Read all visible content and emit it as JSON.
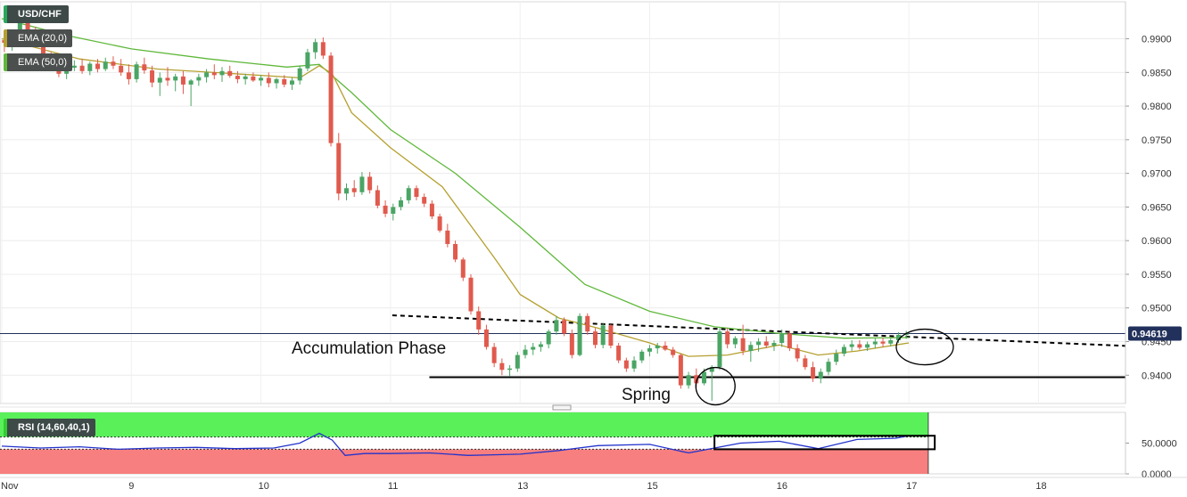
{
  "header": {
    "symbol": "USD/CHF",
    "ema_fast_label": "EMA (20,0)",
    "ema_slow_label": "EMA (50,0)",
    "rsi_label": "RSI (14,60,40,1)"
  },
  "colors": {
    "up_candle": "#4aa564",
    "down_candle": "#e05a4d",
    "ema_fast": "#b5a030",
    "ema_slow": "#5fb83a",
    "rsi_line": "#2233cc",
    "rsi_upper_zone": "#5af05a",
    "rsi_lower_zone": "#f77f7f",
    "price_line": "#22315c",
    "current_price_bg": "#22315c"
  },
  "annotations": {
    "accumulation": "Accumulation Phase",
    "spring": "Spring"
  },
  "chart_data": [
    {
      "type": "candlestick",
      "title": "USD/CHF",
      "y_ticks": [
        "0.9900",
        "0.9850",
        "0.9800",
        "0.9750",
        "0.9700",
        "0.9650",
        "0.9600",
        "0.9550",
        "0.9500",
        "0.9450",
        "0.9400"
      ],
      "ylim": [
        0.9358,
        0.9955
      ],
      "current_price": "0.94619",
      "x_tick_labels": [
        "Nov",
        "9",
        "10",
        "11",
        "13",
        "15",
        "16",
        "17",
        "18"
      ],
      "x_tick_values": [
        0,
        1,
        2,
        3,
        4,
        5,
        6,
        7,
        8
      ],
      "support_level": 0.9397,
      "resistance_trendline": [
        [
          3.0,
          0.9489
        ],
        [
          8.0,
          0.9449
        ]
      ],
      "ohlc": [
        [
          0.02,
          0.9898,
          0.9912,
          0.988,
          0.9894
        ],
        [
          0.08,
          0.9894,
          0.9908,
          0.9882,
          0.9902
        ],
        [
          0.14,
          0.9902,
          0.993,
          0.9895,
          0.9925
        ],
        [
          0.2,
          0.9925,
          0.9935,
          0.9905,
          0.991
        ],
        [
          0.26,
          0.991,
          0.9918,
          0.9888,
          0.9893
        ],
        [
          0.32,
          0.9893,
          0.99,
          0.9865,
          0.987
        ],
        [
          0.38,
          0.987,
          0.988,
          0.9855,
          0.9862
        ],
        [
          0.44,
          0.9862,
          0.9875,
          0.9843,
          0.9848
        ],
        [
          0.5,
          0.9848,
          0.9862,
          0.984,
          0.9857
        ],
        [
          0.56,
          0.9857,
          0.9868,
          0.9852,
          0.986
        ],
        [
          0.62,
          0.986,
          0.987,
          0.9848,
          0.9852
        ],
        [
          0.68,
          0.9852,
          0.9866,
          0.9846,
          0.9863
        ],
        [
          0.74,
          0.9863,
          0.987,
          0.985,
          0.9855
        ],
        [
          0.8,
          0.9855,
          0.9872,
          0.9852,
          0.9866
        ],
        [
          0.86,
          0.9866,
          0.9874,
          0.9855,
          0.986
        ],
        [
          0.92,
          0.986,
          0.987,
          0.9845,
          0.985
        ],
        [
          0.98,
          0.985,
          0.9862,
          0.9832,
          0.984
        ],
        [
          1.04,
          0.984,
          0.9866,
          0.9835,
          0.9862
        ],
        [
          1.1,
          0.9862,
          0.9872,
          0.9848,
          0.9853
        ],
        [
          1.16,
          0.9853,
          0.986,
          0.9828,
          0.9835
        ],
        [
          1.22,
          0.9835,
          0.985,
          0.9815,
          0.9842
        ],
        [
          1.28,
          0.9842,
          0.9858,
          0.983,
          0.9838
        ],
        [
          1.34,
          0.9838,
          0.9848,
          0.9822,
          0.9844
        ],
        [
          1.4,
          0.9844,
          0.9852,
          0.9818,
          0.9832
        ],
        [
          1.46,
          0.9832,
          0.984,
          0.98,
          0.9838
        ],
        [
          1.52,
          0.9838,
          0.9848,
          0.983,
          0.9843
        ],
        [
          1.58,
          0.9843,
          0.9855,
          0.9835,
          0.985
        ],
        [
          1.64,
          0.985,
          0.9862,
          0.984,
          0.9846
        ],
        [
          1.7,
          0.9846,
          0.9858,
          0.9836,
          0.9852
        ],
        [
          1.76,
          0.9852,
          0.986,
          0.9842,
          0.9845
        ],
        [
          1.82,
          0.9845,
          0.9852,
          0.9834,
          0.984
        ],
        [
          1.88,
          0.984,
          0.9848,
          0.9832,
          0.9844
        ],
        [
          1.94,
          0.9844,
          0.985,
          0.9836,
          0.9838
        ],
        [
          2.0,
          0.9838,
          0.9846,
          0.983,
          0.9842
        ],
        [
          2.06,
          0.9842,
          0.985,
          0.9828,
          0.9834
        ],
        [
          2.12,
          0.9834,
          0.9842,
          0.9826,
          0.984
        ],
        [
          2.18,
          0.984,
          0.9846,
          0.9828,
          0.9832
        ],
        [
          2.24,
          0.9832,
          0.9842,
          0.9824,
          0.9838
        ],
        [
          2.3,
          0.9838,
          0.986,
          0.9832,
          0.9856
        ],
        [
          2.36,
          0.9856,
          0.9885,
          0.9852,
          0.988
        ],
        [
          2.42,
          0.988,
          0.99,
          0.987,
          0.9895
        ],
        [
          2.48,
          0.9895,
          0.9902,
          0.987,
          0.9875
        ],
        [
          2.54,
          0.9875,
          0.988,
          0.974,
          0.9745
        ],
        [
          2.6,
          0.9745,
          0.976,
          0.966,
          0.967
        ],
        [
          2.66,
          0.967,
          0.9685,
          0.966,
          0.9678
        ],
        [
          2.72,
          0.9678,
          0.969,
          0.9665,
          0.9672
        ],
        [
          2.78,
          0.9672,
          0.9702,
          0.9668,
          0.9695
        ],
        [
          2.84,
          0.9695,
          0.9702,
          0.967,
          0.9675
        ],
        [
          2.9,
          0.9675,
          0.9682,
          0.9648,
          0.9652
        ],
        [
          2.96,
          0.9652,
          0.966,
          0.9635,
          0.964
        ],
        [
          3.02,
          0.964,
          0.9655,
          0.963,
          0.965
        ],
        [
          3.08,
          0.965,
          0.9665,
          0.9645,
          0.966
        ],
        [
          3.14,
          0.966,
          0.9682,
          0.9655,
          0.9678
        ],
        [
          3.2,
          0.9678,
          0.9682,
          0.966,
          0.9665
        ],
        [
          3.26,
          0.9665,
          0.967,
          0.965,
          0.9655
        ],
        [
          3.32,
          0.9655,
          0.966,
          0.9632,
          0.9636
        ],
        [
          3.38,
          0.9636,
          0.964,
          0.9612,
          0.9615
        ],
        [
          3.44,
          0.9615,
          0.9625,
          0.959,
          0.9595
        ],
        [
          3.5,
          0.9595,
          0.96,
          0.9568,
          0.9572
        ],
        [
          3.56,
          0.9572,
          0.9575,
          0.954,
          0.9545
        ],
        [
          3.62,
          0.9545,
          0.955,
          0.949,
          0.9495
        ],
        [
          3.68,
          0.9495,
          0.9502,
          0.946,
          0.9468
        ],
        [
          3.74,
          0.9468,
          0.9475,
          0.9438,
          0.9442
        ],
        [
          3.8,
          0.9442,
          0.9448,
          0.9412,
          0.9418
        ],
        [
          3.86,
          0.9418,
          0.9425,
          0.94,
          0.9408
        ],
        [
          3.92,
          0.9408,
          0.9415,
          0.9398,
          0.941
        ],
        [
          3.98,
          0.941,
          0.9435,
          0.9405,
          0.943
        ],
        [
          4.04,
          0.943,
          0.9445,
          0.9425,
          0.9438
        ],
        [
          4.1,
          0.9438,
          0.9448,
          0.943,
          0.9442
        ],
        [
          4.16,
          0.9442,
          0.945,
          0.9435,
          0.9446
        ],
        [
          4.22,
          0.9446,
          0.9468,
          0.944,
          0.9465
        ],
        [
          4.28,
          0.9465,
          0.9488,
          0.946,
          0.9482
        ],
        [
          4.34,
          0.9482,
          0.9486,
          0.9458,
          0.9462
        ],
        [
          4.4,
          0.9462,
          0.9468,
          0.9425,
          0.943
        ],
        [
          4.46,
          0.943,
          0.9492,
          0.9428,
          0.9488
        ],
        [
          4.52,
          0.9488,
          0.9492,
          0.946,
          0.9465
        ],
        [
          4.58,
          0.9465,
          0.947,
          0.944,
          0.9445
        ],
        [
          4.64,
          0.9445,
          0.9478,
          0.944,
          0.9474
        ],
        [
          4.7,
          0.9474,
          0.9476,
          0.944,
          0.9444
        ],
        [
          4.76,
          0.9444,
          0.9448,
          0.9418,
          0.9422
        ],
        [
          4.82,
          0.9422,
          0.9426,
          0.9405,
          0.941
        ],
        [
          4.88,
          0.941,
          0.9428,
          0.9405,
          0.9422
        ],
        [
          4.94,
          0.9422,
          0.9438,
          0.9418,
          0.9435
        ],
        [
          5.0,
          0.9435,
          0.9445,
          0.9428,
          0.944
        ],
        [
          5.06,
          0.944,
          0.9448,
          0.9432,
          0.9444
        ],
        [
          5.12,
          0.9444,
          0.945,
          0.9436,
          0.9438
        ],
        [
          5.18,
          0.9438,
          0.9442,
          0.9426,
          0.943
        ],
        [
          5.24,
          0.943,
          0.9432,
          0.938,
          0.9385
        ],
        [
          5.3,
          0.9385,
          0.9405,
          0.938,
          0.94
        ],
        [
          5.36,
          0.94,
          0.941,
          0.9382,
          0.9388
        ],
        [
          5.42,
          0.9388,
          0.941,
          0.9385,
          0.9405
        ],
        [
          5.48,
          0.9405,
          0.9415,
          0.9362,
          0.9412
        ],
        [
          5.54,
          0.9412,
          0.947,
          0.9408,
          0.9465
        ],
        [
          5.6,
          0.9465,
          0.947,
          0.944,
          0.9446
        ],
        [
          5.66,
          0.9446,
          0.9458,
          0.944,
          0.9455
        ],
        [
          5.72,
          0.9455,
          0.9475,
          0.943,
          0.9436
        ],
        [
          5.78,
          0.9436,
          0.945,
          0.942,
          0.9445
        ],
        [
          5.84,
          0.9445,
          0.9455,
          0.9435,
          0.945
        ],
        [
          5.9,
          0.945,
          0.9458,
          0.944,
          0.9444
        ],
        [
          5.96,
          0.9444,
          0.9452,
          0.9436,
          0.9448
        ],
        [
          6.02,
          0.9448,
          0.9468,
          0.9442,
          0.9462
        ],
        [
          6.08,
          0.9462,
          0.9466,
          0.9436,
          0.944
        ],
        [
          6.14,
          0.944,
          0.9446,
          0.942,
          0.9425
        ],
        [
          6.2,
          0.9425,
          0.943,
          0.9408,
          0.9412
        ],
        [
          6.26,
          0.9412,
          0.942,
          0.939,
          0.9395
        ],
        [
          6.32,
          0.9395,
          0.941,
          0.9388,
          0.9405
        ],
        [
          6.38,
          0.9405,
          0.9425,
          0.94,
          0.942
        ],
        [
          6.44,
          0.942,
          0.9438,
          0.9415,
          0.9432
        ],
        [
          6.5,
          0.9432,
          0.9446,
          0.9428,
          0.9442
        ],
        [
          6.56,
          0.9442,
          0.9452,
          0.9436,
          0.9446
        ],
        [
          6.62,
          0.9446,
          0.9452,
          0.9438,
          0.9441
        ],
        [
          6.68,
          0.9441,
          0.945,
          0.9436,
          0.9446
        ],
        [
          6.74,
          0.9446,
          0.9455,
          0.944,
          0.945
        ],
        [
          6.8,
          0.945,
          0.9456,
          0.9442,
          0.9447
        ],
        [
          6.86,
          0.9447,
          0.9455,
          0.9443,
          0.9452
        ],
        [
          6.92,
          0.9452,
          0.9464,
          0.9448,
          0.946
        ],
        [
          6.98,
          0.946,
          0.9466,
          0.9454,
          0.9462
        ]
      ],
      "ema20": [
        [
          0.0,
          0.99
        ],
        [
          0.6,
          0.987
        ],
        [
          1.2,
          0.9855
        ],
        [
          1.8,
          0.9848
        ],
        [
          2.3,
          0.9842
        ],
        [
          2.45,
          0.986
        ],
        [
          2.55,
          0.9848
        ],
        [
          2.7,
          0.979
        ],
        [
          3.0,
          0.9738
        ],
        [
          3.4,
          0.968
        ],
        [
          3.8,
          0.9575
        ],
        [
          4.0,
          0.952
        ],
        [
          4.3,
          0.9485
        ],
        [
          4.6,
          0.947
        ],
        [
          5.0,
          0.9448
        ],
        [
          5.3,
          0.9428
        ],
        [
          5.6,
          0.943
        ],
        [
          6.0,
          0.9445
        ],
        [
          6.3,
          0.943
        ],
        [
          6.6,
          0.9436
        ],
        [
          7.0,
          0.9448
        ]
      ],
      "ema50": [
        [
          0.0,
          0.993
        ],
        [
          0.5,
          0.9905
        ],
        [
          1.0,
          0.9885
        ],
        [
          1.6,
          0.987
        ],
        [
          2.2,
          0.9858
        ],
        [
          2.45,
          0.9862
        ],
        [
          2.7,
          0.982
        ],
        [
          3.0,
          0.9765
        ],
        [
          3.5,
          0.97
        ],
        [
          4.0,
          0.962
        ],
        [
          4.5,
          0.9535
        ],
        [
          5.0,
          0.9495
        ],
        [
          5.5,
          0.9472
        ],
        [
          6.0,
          0.9462
        ],
        [
          6.5,
          0.9455
        ],
        [
          7.0,
          0.9456
        ]
      ]
    },
    {
      "type": "line",
      "title": "RSI (14,60,40,1)",
      "y_ticks": [
        "50.0000",
        "0.0000"
      ],
      "levels": {
        "upper": 60,
        "lower": 40
      },
      "ylim": [
        0,
        100
      ],
      "values": [
        [
          0.0,
          45
        ],
        [
          0.3,
          42
        ],
        [
          0.6,
          44
        ],
        [
          0.9,
          40
        ],
        [
          1.2,
          42
        ],
        [
          1.5,
          43
        ],
        [
          1.8,
          41
        ],
        [
          2.1,
          42
        ],
        [
          2.3,
          50
        ],
        [
          2.45,
          66
        ],
        [
          2.55,
          55
        ],
        [
          2.65,
          30
        ],
        [
          2.8,
          33
        ],
        [
          3.0,
          33
        ],
        [
          3.3,
          34
        ],
        [
          3.6,
          30
        ],
        [
          3.8,
          31
        ],
        [
          4.0,
          32
        ],
        [
          4.3,
          38
        ],
        [
          4.6,
          46
        ],
        [
          5.0,
          48
        ],
        [
          5.3,
          34
        ],
        [
          5.5,
          42
        ],
        [
          5.7,
          50
        ],
        [
          6.0,
          53
        ],
        [
          6.3,
          41
        ],
        [
          6.6,
          56
        ],
        [
          6.9,
          58
        ],
        [
          7.0,
          62
        ]
      ],
      "highlight_box": [
        5.5,
        7.2
      ]
    }
  ]
}
